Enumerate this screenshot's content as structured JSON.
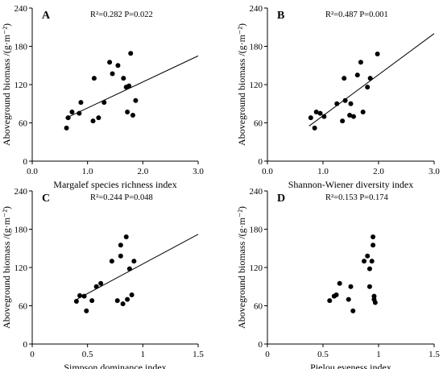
{
  "chart_data": [
    {
      "type": "scatter",
      "panel": "A",
      "stats": "R²=0.282  P=0.022",
      "xlabel": "Margalef species richness index",
      "ylabel": "Aboveground biomass /(g·m⁻²)",
      "xlim": [
        0,
        3.0
      ],
      "ylim": [
        0,
        240
      ],
      "xticks": [
        0,
        1,
        2,
        3
      ],
      "xtick_labels": [
        "0.0",
        "1.0",
        "2.0",
        "3.0"
      ],
      "yticks": [
        0,
        60,
        120,
        180,
        240
      ],
      "ytick_labels": [
        "0",
        "60",
        "120",
        "180",
        "240"
      ],
      "grid": false,
      "x": [
        0.62,
        0.65,
        0.72,
        0.85,
        0.88,
        1.1,
        1.12,
        1.2,
        1.3,
        1.4,
        1.45,
        1.55,
        1.65,
        1.7,
        1.72,
        1.75,
        1.78,
        1.82,
        1.87
      ],
      "y": [
        52,
        68,
        77,
        75,
        92,
        63,
        130,
        68,
        92,
        155,
        137,
        150,
        130,
        116,
        77,
        118,
        169,
        72,
        95
      ],
      "fit_line": {
        "x": [
          0.6,
          3.0
        ],
        "y": [
          67,
          165
        ]
      }
    },
    {
      "type": "scatter",
      "panel": "B",
      "stats": "R²=0.487  P=0.001",
      "xlabel": "Shannon-Wiener diversity index",
      "ylabel": "Aboveground biomass /(g·m⁻²)",
      "xlim": [
        0,
        3.0
      ],
      "ylim": [
        0,
        240
      ],
      "xticks": [
        0,
        1,
        2,
        3
      ],
      "xtick_labels": [
        "0.0",
        "1.0",
        "2.0",
        "3.0"
      ],
      "yticks": [
        0,
        60,
        120,
        180,
        240
      ],
      "ytick_labels": [
        "0",
        "60",
        "120",
        "180",
        "240"
      ],
      "grid": false,
      "x": [
        0.78,
        0.85,
        0.88,
        0.95,
        1.02,
        1.25,
        1.35,
        1.38,
        1.4,
        1.48,
        1.5,
        1.55,
        1.62,
        1.68,
        1.72,
        1.8,
        1.85,
        1.98
      ],
      "y": [
        68,
        52,
        77,
        75,
        70,
        90,
        63,
        130,
        95,
        72,
        90,
        70,
        135,
        155,
        77,
        116,
        130,
        168
      ],
      "fit_line": {
        "x": [
          0.75,
          3.0
        ],
        "y": [
          55,
          200
        ]
      }
    },
    {
      "type": "scatter",
      "panel": "C",
      "stats": "R²=0.244  P=0.048",
      "xlabel": "Simpson dominance index",
      "ylabel": "Aboveground biomass /(g·m⁻²)",
      "xlim": [
        0,
        1.5
      ],
      "ylim": [
        0,
        240
      ],
      "xticks": [
        0,
        0.5,
        1,
        1.5
      ],
      "xtick_labels": [
        "0",
        "0.5",
        "1",
        "1.5"
      ],
      "yticks": [
        0,
        60,
        120,
        180,
        240
      ],
      "ytick_labels": [
        "0",
        "60",
        "120",
        "180",
        "240"
      ],
      "grid": false,
      "x": [
        0.4,
        0.43,
        0.47,
        0.49,
        0.54,
        0.58,
        0.62,
        0.72,
        0.77,
        0.8,
        0.8,
        0.82,
        0.85,
        0.86,
        0.88,
        0.9,
        0.92
      ],
      "y": [
        67,
        76,
        75,
        52,
        68,
        90,
        95,
        130,
        68,
        155,
        138,
        63,
        168,
        70,
        118,
        77,
        130
      ],
      "fit_line": {
        "x": [
          0.38,
          1.5
        ],
        "y": [
          68,
          172
        ]
      }
    },
    {
      "type": "scatter",
      "panel": "D",
      "stats": "R²=0.153  P=0.174",
      "xlabel": "Pielou eveness index",
      "ylabel": "Aboveground biomass /(g·m⁻²)",
      "xlim": [
        0,
        1.5
      ],
      "ylim": [
        0,
        240
      ],
      "xticks": [
        0,
        0.5,
        1,
        1.5
      ],
      "xtick_labels": [
        "0",
        "0.5",
        "1",
        "1.5"
      ],
      "yticks": [
        0,
        60,
        120,
        180,
        240
      ],
      "ytick_labels": [
        "0",
        "60",
        "120",
        "180",
        "240"
      ],
      "grid": false,
      "x": [
        0.56,
        0.6,
        0.62,
        0.65,
        0.73,
        0.75,
        0.77,
        0.87,
        0.9,
        0.92,
        0.92,
        0.94,
        0.95,
        0.95,
        0.96,
        0.96,
        0.97
      ],
      "y": [
        68,
        75,
        77,
        95,
        70,
        90,
        52,
        130,
        138,
        118,
        90,
        130,
        168,
        155,
        75,
        70,
        65
      ]
    }
  ]
}
